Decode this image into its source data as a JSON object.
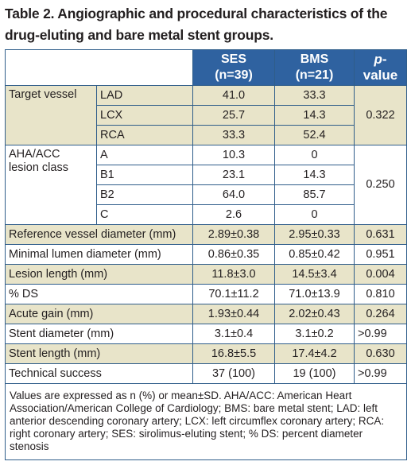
{
  "caption": "Table 2. Angiographic and procedural characteristics of the drug-eluting and bare metal stent groups.",
  "header": {
    "ses_line1": "SES",
    "ses_line2": "(n=39)",
    "bms_line1": "BMS",
    "bms_line2": "(n=21)",
    "p_italic": "p",
    "p_rest": "-value"
  },
  "target_vessel": {
    "label": "Target vessel",
    "p": "0.322",
    "rows": [
      {
        "sub": "LAD",
        "ses": "41.0",
        "bms": "33.3"
      },
      {
        "sub": "LCX",
        "ses": "25.7",
        "bms": "14.3"
      },
      {
        "sub": "RCA",
        "ses": "33.3",
        "bms": "52.4"
      }
    ]
  },
  "lesion_class": {
    "label_line1": "AHA/ACC",
    "label_line2": "lesion class",
    "p": "0.250",
    "rows": [
      {
        "sub": "A",
        "ses": "10.3",
        "bms": "0"
      },
      {
        "sub": "B1",
        "ses": "23.1",
        "bms": "14.3"
      },
      {
        "sub": "B2",
        "ses": "64.0",
        "bms": "85.7"
      },
      {
        "sub": "C",
        "ses": "2.6",
        "bms": "0"
      }
    ]
  },
  "rows": [
    {
      "label": "Reference vessel diameter (mm)",
      "ses": "2.89±0.38",
      "bms": "2.95±0.33",
      "p": "0.631"
    },
    {
      "label": "Minimal lumen diameter (mm)",
      "ses": "0.86±0.35",
      "bms": "0.85±0.42",
      "p": "0.951"
    },
    {
      "label": "Lesion length (mm)",
      "ses": "11.8±3.0",
      "bms": "14.5±3.4",
      "p": "0.004"
    },
    {
      "label": "% DS",
      "ses": "70.1±11.2",
      "bms": "71.0±13.9",
      "p": "0.810"
    },
    {
      "label": "Acute gain (mm)",
      "ses": "1.93±0.44",
      "bms": "2.02±0.43",
      "p": "0.264"
    },
    {
      "label": "Stent diameter (mm)",
      "ses": "3.1±0.4",
      "bms": "3.1±0.2",
      "p": ">0.99"
    },
    {
      "label": "Stent length (mm)",
      "ses": "16.8±5.5",
      "bms": "17.4±4.2",
      "p": "0.630"
    },
    {
      "label": "Technical success",
      "ses": "37 (100)",
      "bms": "19 (100)",
      "p": ">0.99"
    }
  ],
  "footnote": "Values are expressed as n (%) or mean±SD. AHA/ACC: American Heart Association/American College of Cardiology; BMS: bare metal stent; LAD: left anterior descending coronary artery; LCX: left circumflex coronary artery; RCA: right coronary artery; SES: sirolimus-eluting stent; % DS: percent diameter stenosis",
  "colors": {
    "header_bg": "#2f62a0",
    "band_bg": "#e8e4c9",
    "border": "#2f5d8a"
  }
}
